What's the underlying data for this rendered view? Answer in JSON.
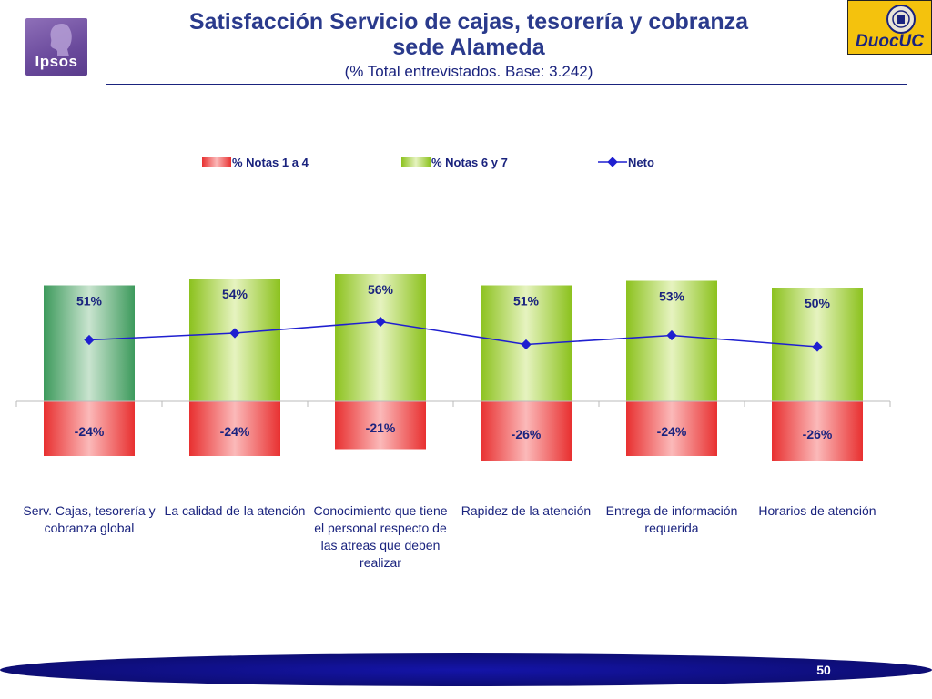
{
  "header": {
    "title_line1": "Satisfacción Servicio de cajas, tesorería y cobranza",
    "title_line2": "sede Alameda",
    "subtitle": "(% Total entrevistados. Base: 3.242)",
    "left_logo_text": "Ipsos",
    "right_logo_text": "DuocUC"
  },
  "footer": {
    "page_number": "50"
  },
  "colors": {
    "title": "#2a3a8c",
    "negative_bar": "#e83030",
    "positive_bar": "#8cc21e",
    "first_positive_bar": "#3d9a5c",
    "neto_line": "#1f1fd0",
    "footer_band": "#1414a8"
  },
  "chart_data": {
    "type": "bar",
    "stacked": true,
    "legend_position": "top",
    "categories": [
      "Serv. Cajas, tesorería y cobranza global",
      "La calidad de la atención",
      "Conocimiento que tiene el personal respecto de las atreas que deben realizar",
      "Rapidez de la atención",
      "Entrega de información requerida",
      "Horarios de atención"
    ],
    "category_lines": [
      [
        "Serv. Cajas, tesorería y",
        "cobranza global"
      ],
      [
        "La calidad de la atención"
      ],
      [
        "Conocimiento que tiene",
        "el personal respecto de",
        "las atreas que deben",
        "realizar"
      ],
      [
        "Rapidez de la atención"
      ],
      [
        "Entrega de información",
        "requerida"
      ],
      [
        "Horarios de atención"
      ]
    ],
    "series": [
      {
        "name": "% Notas 1 a 4",
        "values": [
          -24,
          -24,
          -21,
          -26,
          -24,
          -26
        ],
        "labels": [
          "-24%",
          "-24%",
          "-21%",
          "-26%",
          "-24%",
          "-26%"
        ]
      },
      {
        "name": "% Notas 6 y 7",
        "values": [
          51,
          54,
          56,
          51,
          53,
          50
        ],
        "labels": [
          "51%",
          "54%",
          "56%",
          "51%",
          "53%",
          "50%"
        ]
      },
      {
        "name": "Neto",
        "type": "line",
        "values": [
          27,
          30,
          35,
          25,
          29,
          24
        ]
      }
    ],
    "ylim": [
      -35,
      60
    ],
    "grid": false
  }
}
